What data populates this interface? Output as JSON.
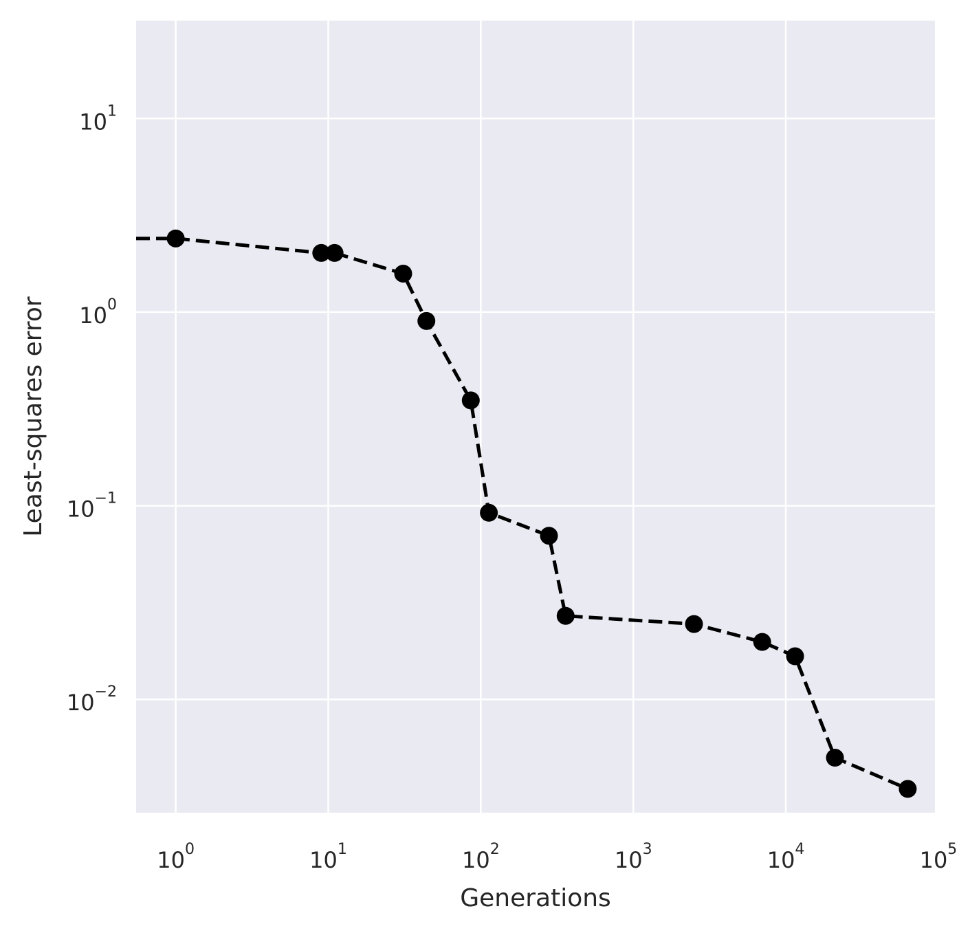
{
  "chart_data": {
    "type": "line",
    "title": "",
    "xlabel": "Generations",
    "ylabel": "Least-squares error",
    "xscale": "log",
    "yscale": "log",
    "xlim": [
      0.55,
      95000
    ],
    "ylim": [
      0.0026,
      32
    ],
    "grid": true,
    "background": "#eaeaf2",
    "grid_color": "#ffffff",
    "line_color": "#000000",
    "line_style": "dashed",
    "marker": "circle",
    "xticks": [
      {
        "base": "10",
        "exp": "0",
        "value": 1
      },
      {
        "base": "10",
        "exp": "1",
        "value": 10
      },
      {
        "base": "10",
        "exp": "2",
        "value": 100
      },
      {
        "base": "10",
        "exp": "3",
        "value": 1000
      },
      {
        "base": "10",
        "exp": "4",
        "value": 10000
      },
      {
        "base": "10",
        "exp": "5",
        "value": 100000
      }
    ],
    "yticks": [
      {
        "base": "10",
        "exp": "−2",
        "value": 0.01
      },
      {
        "base": "10",
        "exp": "−1",
        "value": 0.1
      },
      {
        "base": "10",
        "exp": "0",
        "value": 1
      },
      {
        "base": "10",
        "exp": "1",
        "value": 10
      }
    ],
    "series": [
      {
        "x": [
          0.55,
          1,
          9,
          11,
          31,
          44,
          86,
          113,
          280,
          360,
          2500,
          7000,
          11500,
          21000,
          63000
        ],
        "y": [
          2.4,
          2.4,
          2.02,
          2.02,
          1.58,
          0.9,
          0.35,
          0.092,
          0.07,
          0.027,
          0.0245,
          0.0198,
          0.0167,
          0.005,
          0.00345
        ],
        "marker_from_index": 1
      }
    ]
  }
}
